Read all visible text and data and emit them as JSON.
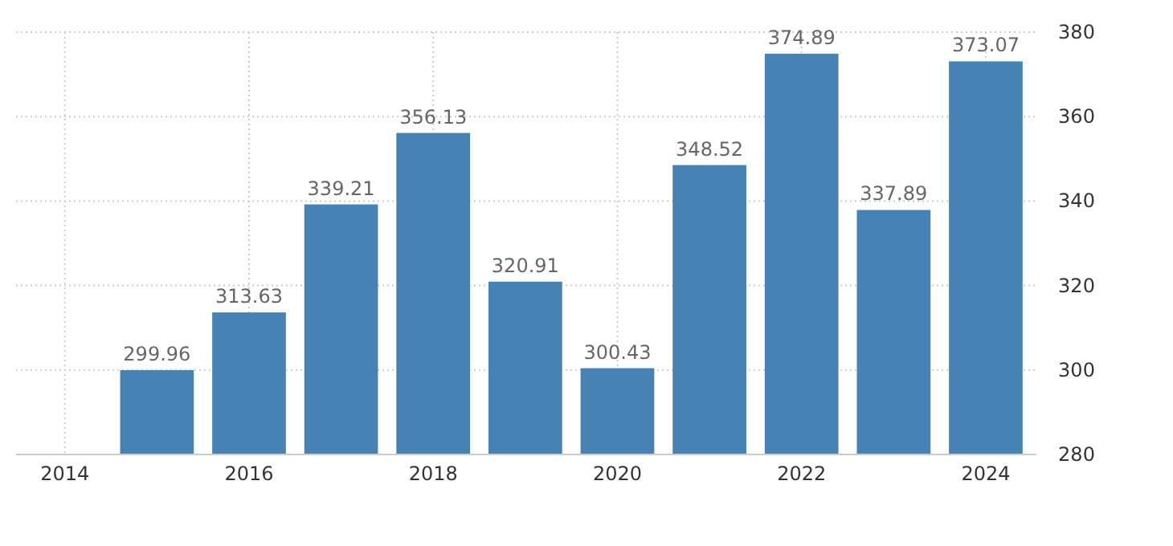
{
  "chart_data": {
    "type": "bar",
    "x": [
      2015,
      2016,
      2017,
      2018,
      2019,
      2020,
      2021,
      2022,
      2023,
      2024
    ],
    "values": [
      299.96,
      313.63,
      339.21,
      356.13,
      320.91,
      300.43,
      348.52,
      374.89,
      337.89,
      373.07
    ],
    "color": "#4682b4",
    "xlim": [
      2013.47,
      2024.55
    ],
    "xticks": [
      2014,
      2016,
      2018,
      2020,
      2022,
      2024
    ],
    "ylim": [
      280,
      380
    ],
    "yticks": [
      280,
      300,
      320,
      340,
      360,
      380
    ],
    "grid": true,
    "data_labels": true
  }
}
